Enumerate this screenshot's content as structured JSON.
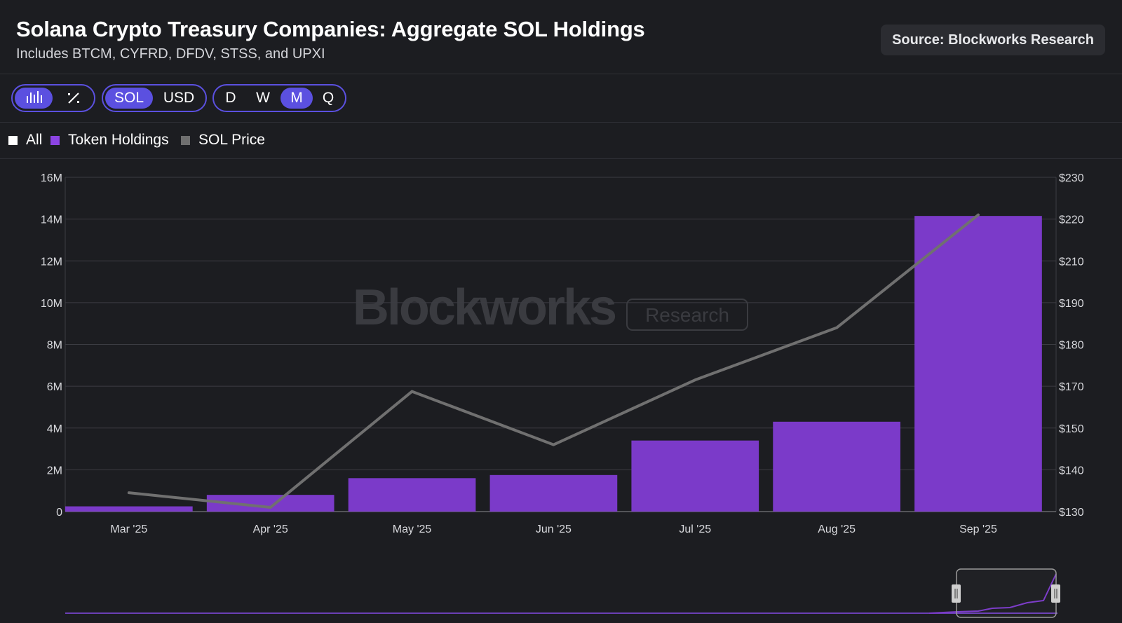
{
  "header": {
    "title": "Solana Crypto Treasury Companies: Aggregate SOL Holdings",
    "subtitle": "Includes BTCM, CYFRD, DFDV, STSS, and UPXI",
    "source": "Source: Blockworks Research"
  },
  "controls": {
    "view_toggle": {
      "bar_icon": "bar-chart-icon",
      "percent_icon": "percent-icon",
      "selected": "bar"
    },
    "unit_toggle": {
      "options": [
        "SOL",
        "USD"
      ],
      "selected": "SOL"
    },
    "period_toggle": {
      "options": [
        "D",
        "W",
        "M",
        "Q"
      ],
      "selected": "M"
    }
  },
  "legend": {
    "items": [
      {
        "label": "All",
        "color": "#ffffff"
      },
      {
        "label": "Token Holdings",
        "color": "#8c44e3"
      },
      {
        "label": "SOL Price",
        "color": "#6f6f6f"
      }
    ]
  },
  "watermark": {
    "brand": "Blockworks",
    "tag": "Research"
  },
  "chart_data": {
    "type": "bar",
    "categories": [
      "Mar '25",
      "Apr '25",
      "May '25",
      "Jun '25",
      "Jul '25",
      "Aug '25",
      "Sep '25"
    ],
    "series": [
      {
        "name": "Token Holdings",
        "type": "bar",
        "axis": "left",
        "color": "#7b3ac9",
        "values": [
          250000,
          800000,
          1600000,
          1750000,
          3400000,
          4300000,
          14150000
        ]
      },
      {
        "name": "SOL Price",
        "type": "line",
        "axis": "right",
        "color": "#707070",
        "values": [
          134.5,
          131,
          167.5,
          146,
          171.5,
          184,
          221
        ]
      }
    ],
    "y_left": {
      "min": 0,
      "max": 16000000,
      "ticks": [
        {
          "v": 0,
          "label": "0"
        },
        {
          "v": 2000000,
          "label": "2M"
        },
        {
          "v": 4000000,
          "label": "4M"
        },
        {
          "v": 6000000,
          "label": "6M"
        },
        {
          "v": 8000000,
          "label": "8M"
        },
        {
          "v": 10000000,
          "label": "10M"
        },
        {
          "v": 12000000,
          "label": "12M"
        },
        {
          "v": 14000000,
          "label": "14M"
        },
        {
          "v": 16000000,
          "label": "16M"
        }
      ]
    },
    "y_right": {
      "min": 130,
      "max": 230,
      "ticks": [
        "$130",
        "$140",
        "$150",
        "$170",
        "$180",
        "$190",
        "$210",
        "$220",
        "$230"
      ]
    },
    "grid": true
  },
  "colors": {
    "background": "#1c1d21",
    "accent": "#5b50e0",
    "bar": "#7b3ac9"
  }
}
